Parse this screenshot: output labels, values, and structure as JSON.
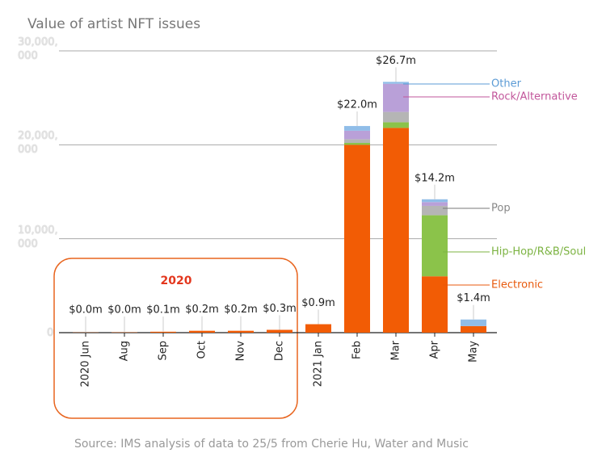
{
  "chart_data": {
    "type": "stacked_bar",
    "title": "Value of artist NFT issues",
    "source": "Source: IMS analysis of data to 25/5 from Cherie Hu, Water and Music",
    "annotation": "2020",
    "categories": [
      "2020 Jun",
      "Aug",
      "Sep",
      "Oct",
      "Nov",
      "Dec",
      "2021 Jan",
      "Feb",
      "Mar",
      "Apr",
      "May"
    ],
    "series": [
      {
        "name": "Electronic",
        "color": "#f25c05",
        "values": [
          20000,
          30000,
          100000,
          200000,
          200000,
          300000,
          900000,
          20000000,
          21800000,
          6000000,
          700000
        ]
      },
      {
        "name": "Hip-Hop/R&B/Soul",
        "color": "#8bc34a",
        "values": [
          0,
          0,
          0,
          0,
          0,
          0,
          0,
          200000,
          600000,
          6500000,
          0
        ]
      },
      {
        "name": "Pop",
        "color": "#b5b5b5",
        "values": [
          0,
          0,
          0,
          0,
          0,
          0,
          0,
          400000,
          1100000,
          1000000,
          0
        ]
      },
      {
        "name": "Rock/Alternative",
        "color": "#b9a0d8",
        "values": [
          0,
          0,
          0,
          0,
          0,
          0,
          0,
          900000,
          3000000,
          400000,
          0
        ]
      },
      {
        "name": "Other",
        "color": "#90bde8",
        "values": [
          0,
          0,
          0,
          0,
          0,
          0,
          0,
          500000,
          200000,
          300000,
          700000
        ]
      }
    ],
    "totals": [
      20000,
      30000,
      100000,
      200000,
      200000,
      300000,
      900000,
      22000000,
      26700000,
      14200000,
      1400000
    ],
    "total_labels": [
      "$0.0m",
      "$0.0m",
      "$0.1m",
      "$0.2m",
      "$0.2m",
      "$0.3m",
      "$0.9m",
      "$22.0m",
      "$26.7m",
      "$14.2m",
      "$1.4m"
    ],
    "ylim": [
      0,
      30000000
    ],
    "yticks": [
      0,
      {
        "value": 10000000,
        "label": "10,000,000"
      },
      {
        "value": 20000000,
        "label": "20,000,000"
      },
      {
        "value": 30000000,
        "label": "30,000,000"
      }
    ],
    "grid": true
  }
}
